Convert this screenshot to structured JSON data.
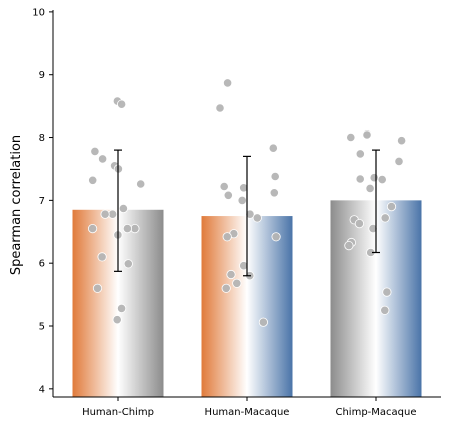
{
  "chart_data": {
    "type": "bar",
    "ylabel": "Spearman correlation",
    "xlabel": "",
    "ylim": [
      3.87,
      10.03
    ],
    "yticks": [
      4,
      5,
      6,
      7,
      8,
      9,
      10
    ],
    "grid": false,
    "categories": [
      "Human-Chimp",
      "Human-Macaque",
      "Chimp-Macaque"
    ],
    "values": [
      6.85,
      6.75,
      7.0
    ],
    "error": [
      {
        "low": 5.87,
        "high": 7.8
      },
      {
        "low": 5.8,
        "high": 7.7
      },
      {
        "low": 6.17,
        "high": 7.8
      }
    ],
    "fills": [
      {
        "left": "#e07a3a",
        "mid": "#ffffff",
        "right": "#8c8c8c"
      },
      {
        "left": "#e07a3a",
        "mid": "#ffffff",
        "right": "#4a74a8"
      },
      {
        "left": "#8c8c8c",
        "mid": "#ffffff",
        "right": "#4a74a8"
      }
    ],
    "point_color": "#b4b4b4",
    "points": [
      [
        8.58,
        8.53,
        7.78,
        7.66,
        7.55,
        7.5,
        7.32,
        7.26,
        6.87,
        6.78,
        6.78,
        6.55,
        6.55,
        6.55,
        6.45,
        6.1,
        5.99,
        5.6,
        5.28,
        5.1
      ],
      [
        8.87,
        8.47,
        7.83,
        7.38,
        7.22,
        7.2,
        7.12,
        7.08,
        7.0,
        6.78,
        6.72,
        6.47,
        6.42,
        6.42,
        5.96,
        5.82,
        5.8,
        5.68,
        5.6,
        5.06
      ],
      [
        8.06,
        8.04,
        8.0,
        7.95,
        7.74,
        7.62,
        7.36,
        7.34,
        7.33,
        7.19,
        6.9,
        6.72,
        6.69,
        6.63,
        6.55,
        6.33,
        6.28,
        6.17,
        5.54,
        5.25
      ]
    ]
  }
}
